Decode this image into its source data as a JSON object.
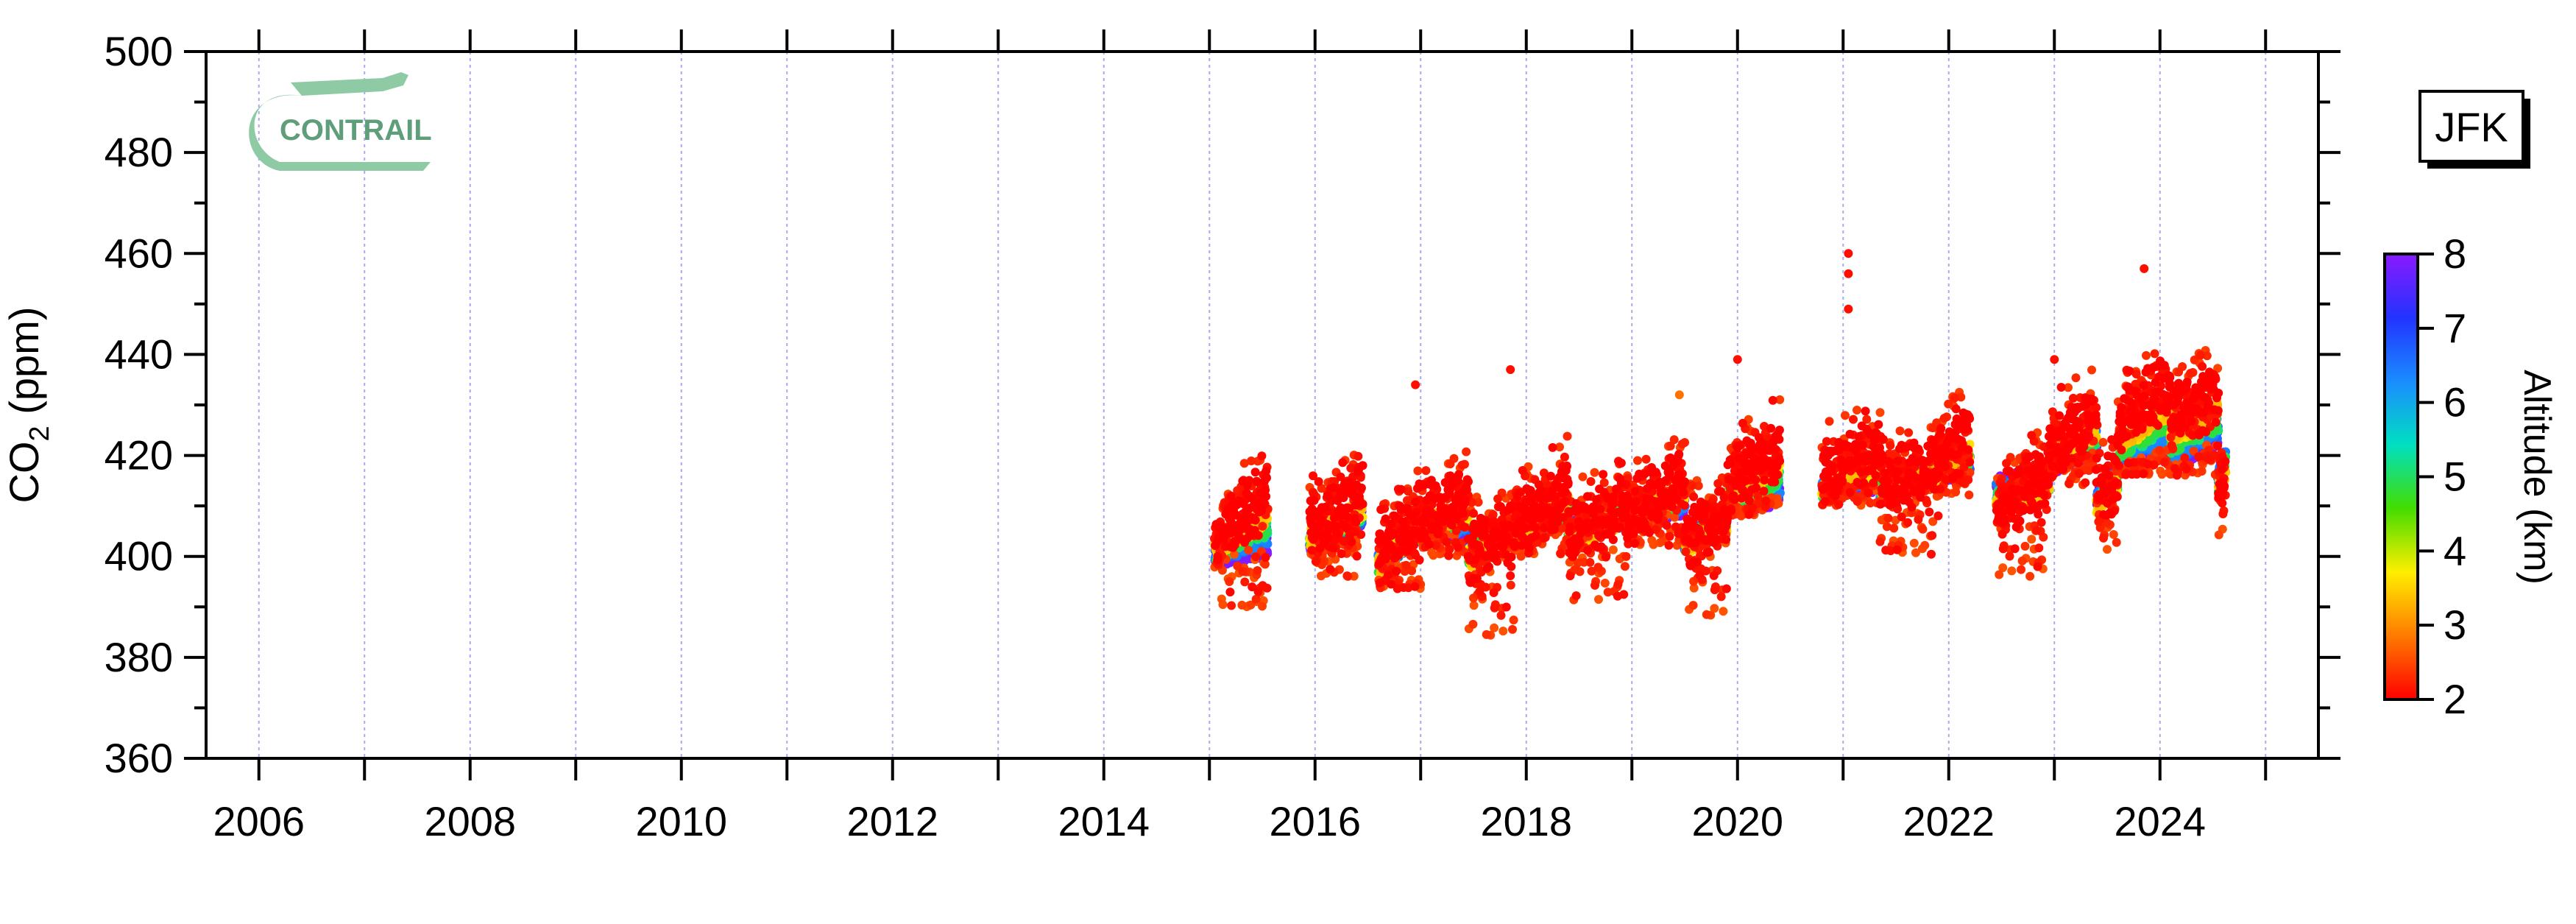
{
  "station_label": "JFK",
  "logo": {
    "text": "CONTRAIL",
    "color": "#8ecba4"
  },
  "colorbar": {
    "label": "Altitude (km)",
    "min": 2,
    "max": 8,
    "ticks": [
      2,
      3,
      4,
      5,
      6,
      7,
      8
    ],
    "colormap": [
      "#ff0000",
      "#ff7a00",
      "#ffee00",
      "#44dd00",
      "#00e0c0",
      "#1a8cff",
      "#2233ff",
      "#8a1aff"
    ]
  },
  "chart_data": {
    "type": "scatter",
    "title": "",
    "ylabel": "CO₂ (ppm)",
    "ylabel_main": "CO",
    "ylabel_sub": "2",
    "ylabel_unit": " (ppm)",
    "xlabel": "",
    "xlim": [
      2005.5,
      2025.5
    ],
    "ylim": [
      360,
      500
    ],
    "x_ticks": [
      2006,
      2008,
      2010,
      2012,
      2014,
      2016,
      2018,
      2020,
      2022,
      2024
    ],
    "y_ticks": [
      360,
      380,
      400,
      420,
      440,
      460,
      480,
      500
    ],
    "vertical_gridlines": true,
    "gridline_color": "#a9a9f0",
    "color_variable": "altitude_km",
    "series": [
      {
        "period": [
          2015.05,
          2015.55
        ],
        "upper_ppm": [
          402,
          410
        ],
        "lower_ppm": [
          400,
          402
        ],
        "lowest_ppm": 390
      },
      {
        "period": [
          2015.95,
          2016.45
        ],
        "upper_ppm": [
          404,
          410
        ],
        "lower_ppm": [
          402,
          408
        ],
        "lowest_ppm": 396
      },
      {
        "period": [
          2016.6,
          2017.0
        ],
        "upper_ppm": [
          398,
          406
        ],
        "lower_ppm": [
          399,
          405
        ],
        "lowest_ppm": 393
      },
      {
        "period": [
          2017.0,
          2017.45
        ],
        "upper_ppm": [
          406,
          410
        ],
        "lower_ppm": [
          404,
          406
        ],
        "lowest_ppm": 400
      },
      {
        "period": [
          2017.45,
          2017.9
        ],
        "upper_ppm": [
          399,
          404
        ],
        "lower_ppm": [
          401,
          405
        ],
        "lowest_ppm": 384
      },
      {
        "period": [
          2017.9,
          2018.4
        ],
        "upper_ppm": [
          404,
          412
        ],
        "lower_ppm": [
          406,
          408
        ],
        "lowest_ppm": 400
      },
      {
        "period": [
          2018.4,
          2018.95
        ],
        "upper_ppm": [
          403,
          408
        ],
        "lower_ppm": [
          405,
          408
        ],
        "lowest_ppm": 391
      },
      {
        "period": [
          2018.95,
          2019.5
        ],
        "upper_ppm": [
          406,
          414
        ],
        "lower_ppm": [
          408,
          410
        ],
        "lowest_ppm": 402
      },
      {
        "period": [
          2019.5,
          2019.9
        ],
        "upper_ppm": [
          402,
          406
        ],
        "lower_ppm": [
          403,
          407
        ],
        "lowest_ppm": 388
      },
      {
        "period": [
          2019.9,
          2020.4
        ],
        "upper_ppm": [
          412,
          420
        ],
        "lower_ppm": [
          410,
          412
        ],
        "lowest_ppm": 408
      },
      {
        "period": [
          2020.8,
          2021.35
        ],
        "upper_ppm": [
          414,
          420
        ],
        "lower_ppm": [
          413,
          415
        ],
        "lowest_ppm": 410
      },
      {
        "period": [
          2021.35,
          2021.9
        ],
        "upper_ppm": [
          412,
          416
        ],
        "lower_ppm": [
          414,
          416
        ],
        "lowest_ppm": 400
      },
      {
        "period": [
          2021.9,
          2022.2
        ],
        "upper_ppm": [
          418,
          422
        ],
        "lower_ppm": [
          416,
          418
        ],
        "lowest_ppm": 412
      },
      {
        "period": [
          2022.45,
          2022.95
        ],
        "upper_ppm": [
          408,
          414
        ],
        "lower_ppm": [
          414,
          416
        ],
        "lowest_ppm": 396
      },
      {
        "period": [
          2022.95,
          2023.4
        ],
        "upper_ppm": [
          420,
          426
        ],
        "lower_ppm": [
          418,
          422
        ],
        "lowest_ppm": 414
      },
      {
        "period": [
          2023.4,
          2023.6
        ],
        "upper_ppm": [
          410,
          414
        ],
        "lower_ppm": [
          412,
          416
        ],
        "lowest_ppm": 401
      },
      {
        "period": [
          2023.6,
          2024.1
        ],
        "upper_ppm": [
          424,
          432
        ],
        "lower_ppm": [
          418,
          422
        ],
        "lowest_ppm": 416
      },
      {
        "period": [
          2024.1,
          2024.55
        ],
        "upper_ppm": [
          426,
          430
        ],
        "lower_ppm": [
          418,
          424
        ],
        "lowest_ppm": 416
      },
      {
        "period": [
          2024.55,
          2024.62
        ],
        "upper_ppm": [
          412,
          416
        ],
        "lower_ppm": [
          416,
          420
        ],
        "lowest_ppm": 404
      }
    ],
    "outliers": [
      {
        "x": 2021.05,
        "y": 460,
        "alt": 2.1
      },
      {
        "x": 2021.05,
        "y": 456,
        "alt": 2.1
      },
      {
        "x": 2021.05,
        "y": 449,
        "alt": 2.1
      },
      {
        "x": 2023.85,
        "y": 457,
        "alt": 2.1
      },
      {
        "x": 2020.0,
        "y": 439,
        "alt": 2.1
      },
      {
        "x": 2017.85,
        "y": 437,
        "alt": 2.1
      },
      {
        "x": 2023.0,
        "y": 439,
        "alt": 2.1
      },
      {
        "x": 2016.95,
        "y": 434,
        "alt": 2.1
      },
      {
        "x": 2019.45,
        "y": 432,
        "alt": 2.8
      }
    ]
  }
}
